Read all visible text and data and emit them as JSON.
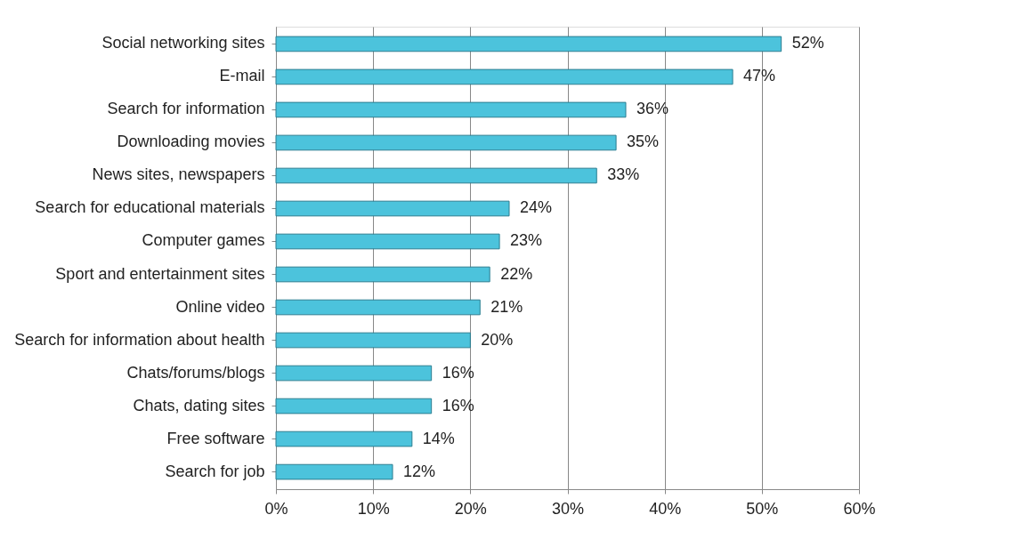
{
  "chart_data": {
    "type": "bar",
    "orientation": "horizontal",
    "categories": [
      "Social networking sites",
      "E-mail",
      "Search for information",
      "Downloading movies",
      "News sites, newspapers",
      "Search for educational materials",
      "Computer games",
      "Sport and entertainment sites",
      "Online video",
      "Search for information about health",
      "Chats/forums/blogs",
      "Chats, dating sites",
      "Free software",
      "Search for job"
    ],
    "values": [
      52,
      47,
      36,
      35,
      33,
      24,
      23,
      22,
      21,
      20,
      16,
      16,
      14,
      12
    ],
    "value_labels": [
      "52%",
      "47%",
      "36%",
      "35%",
      "33%",
      "24%",
      "23%",
      "22%",
      "21%",
      "20%",
      "16%",
      "16%",
      "14%",
      "12%"
    ],
    "color": "#4cc3dc",
    "xlim": [
      0,
      60
    ],
    "xticks": [
      {
        "value": 0,
        "label": "0%"
      },
      {
        "value": 10,
        "label": "10%"
      },
      {
        "value": 20,
        "label": "20%"
      },
      {
        "value": 30,
        "label": "30%"
      },
      {
        "value": 40,
        "label": "40%"
      },
      {
        "value": 50,
        "label": "50%"
      },
      {
        "value": 60,
        "label": "60%"
      }
    ],
    "grid": "x"
  }
}
